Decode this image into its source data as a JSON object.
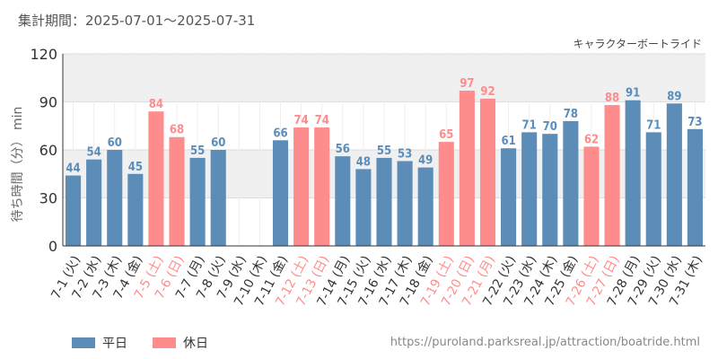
{
  "header": {
    "period": "集計期間：2025-07-01～2025-07-31",
    "attraction": "キャラクターボートライド"
  },
  "legend": {
    "weekday": "平日",
    "holiday": "休日"
  },
  "source": "https://puroland.parksreal.jp/attraction/boatride.html",
  "colors": {
    "weekday": "#5b8db8",
    "holiday": "#ff8c8c",
    "band": "#f0f0f0",
    "grid": "#dddddd",
    "axis": "#333333"
  },
  "chart_data": {
    "type": "bar",
    "ylabel": "待ち時間（分） min",
    "ylim": [
      0,
      120
    ],
    "yticks": [
      0,
      30,
      60,
      90,
      120
    ],
    "grid": true,
    "legend_position": "bottom-left",
    "categories": [
      "7-1 (火)",
      "7-2 (水)",
      "7-3 (木)",
      "7-4 (金)",
      "7-5 (土)",
      "7-6 (日)",
      "7-7 (月)",
      "7-8 (火)",
      "7-9 (水)",
      "7-10 (木)",
      "7-11 (金)",
      "7-12 (土)",
      "7-13 (日)",
      "7-14 (月)",
      "7-15 (火)",
      "7-16 (水)",
      "7-17 (木)",
      "7-18 (金)",
      "7-19 (土)",
      "7-20 (日)",
      "7-21 (月)",
      "7-22 (火)",
      "7-23 (水)",
      "7-24 (木)",
      "7-25 (金)",
      "7-26 (土)",
      "7-27 (日)",
      "7-28 (月)",
      "7-29 (火)",
      "7-30 (水)",
      "7-31 (木)"
    ],
    "values": [
      44,
      54,
      60,
      45,
      84,
      68,
      55,
      60,
      null,
      null,
      66,
      74,
      74,
      56,
      48,
      55,
      53,
      49,
      65,
      97,
      92,
      61,
      71,
      70,
      78,
      62,
      88,
      91,
      71,
      89,
      73
    ],
    "holiday": [
      false,
      false,
      false,
      false,
      true,
      true,
      false,
      false,
      false,
      false,
      false,
      true,
      true,
      false,
      false,
      false,
      false,
      false,
      true,
      true,
      true,
      false,
      false,
      false,
      false,
      true,
      true,
      false,
      false,
      false,
      false
    ]
  }
}
